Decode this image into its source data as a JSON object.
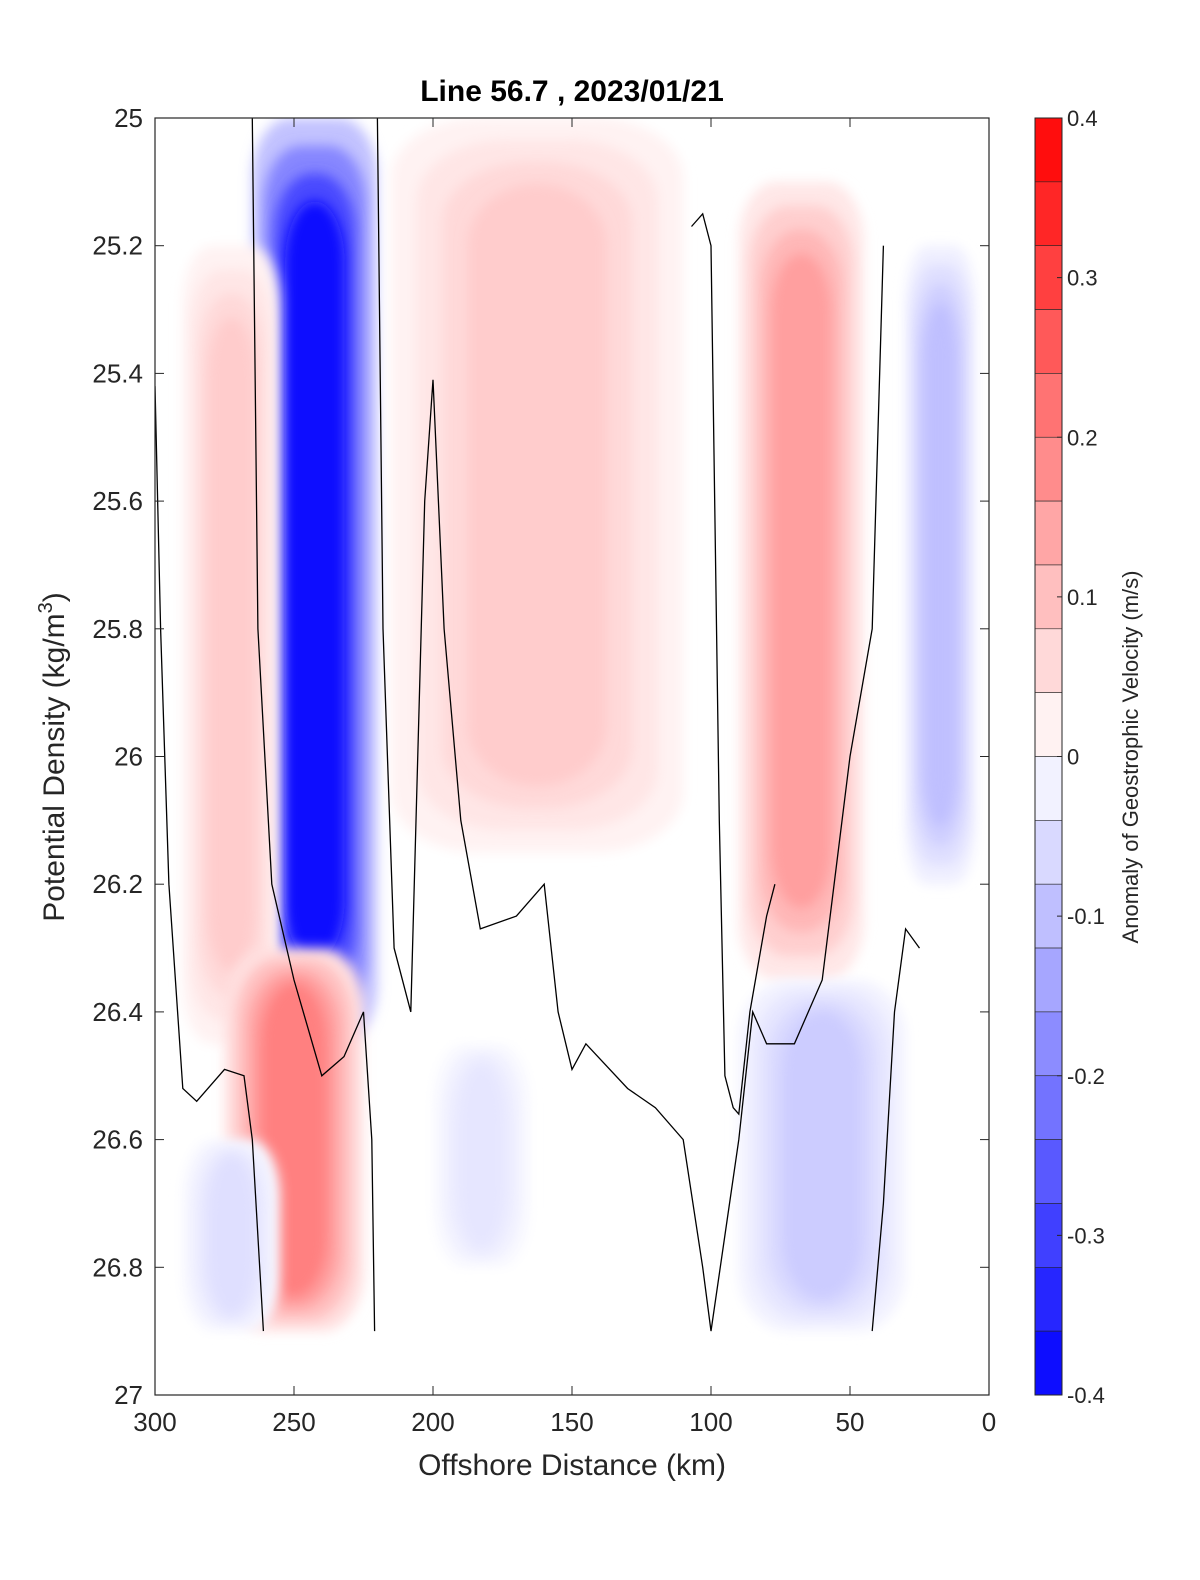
{
  "chart_data": {
    "type": "heatmap",
    "title": "Line 56.7 , 2023/01/21",
    "xlabel": "Offshore Distance (km)",
    "ylabel_main": "Potential Density (kg/m",
    "ylabel_sup": "3",
    "ylabel_close": ")",
    "xlim": [
      300,
      0
    ],
    "ylim": [
      25,
      27
    ],
    "x_reversed": true,
    "y_reversed": true,
    "xticks": [
      300,
      250,
      200,
      150,
      100,
      50,
      0
    ],
    "xtick_labels": [
      "300",
      "250",
      "200",
      "150",
      "100",
      "50",
      "0"
    ],
    "yticks": [
      25,
      25.2,
      25.4,
      25.6,
      25.8,
      26,
      26.2,
      26.4,
      26.6,
      26.8,
      27
    ],
    "ytick_labels": [
      "25",
      "25.2",
      "25.4",
      "25.6",
      "25.8",
      "26",
      "26.2",
      "26.4",
      "26.6",
      "26.8",
      "27"
    ],
    "colorbar": {
      "label": "Anomaly of Geostrophic Velocity (m/s)",
      "range": [
        -0.4,
        0.4
      ],
      "levels": 20,
      "ticks": [
        0.4,
        0.3,
        0.2,
        0.1,
        0,
        -0.1,
        -0.2,
        -0.3,
        -0.4
      ],
      "tick_labels": [
        "0.4",
        "0.3",
        "0.2",
        "0.1",
        "0",
        "-0.1",
        "-0.2",
        "-0.3",
        "-0.4"
      ],
      "colormap": "blue-white-red",
      "negative_color": "#0000ff",
      "positive_color": "#ff0000"
    },
    "grid": false,
    "contour_line": "zero-velocity contour (black)",
    "regions": [
      {
        "id": "neg-core-250",
        "value": -0.38,
        "x_range": [
          265,
          220
        ],
        "y_range": [
          25.0,
          26.45
        ]
      },
      {
        "id": "pos-west-270",
        "value": 0.08,
        "x_range": [
          290,
          255
        ],
        "y_range": [
          25.2,
          26.45
        ]
      },
      {
        "id": "pos-deep-245",
        "value": 0.2,
        "x_range": [
          275,
          225
        ],
        "y_range": [
          26.3,
          26.9
        ]
      },
      {
        "id": "pos-band-185",
        "value": 0.08,
        "x_range": [
          215,
          110
        ],
        "y_range": [
          25.0,
          26.15
        ]
      },
      {
        "id": "pos-band-65",
        "value": 0.15,
        "x_range": [
          90,
          45
        ],
        "y_range": [
          25.1,
          26.35
        ]
      },
      {
        "id": "neg-east-25",
        "value": -0.1,
        "x_range": [
          30,
          5
        ],
        "y_range": [
          25.2,
          26.2
        ]
      },
      {
        "id": "neg-mid-175",
        "value": -0.04,
        "x_range": [
          200,
          165
        ],
        "y_range": [
          26.45,
          26.8
        ]
      },
      {
        "id": "neg-deep-60",
        "value": -0.08,
        "x_range": [
          90,
          30
        ],
        "y_range": [
          26.35,
          26.9
        ]
      },
      {
        "id": "neg-deep-280",
        "value": -0.05,
        "x_range": [
          290,
          255
        ],
        "y_range": [
          26.6,
          26.9
        ]
      }
    ]
  }
}
